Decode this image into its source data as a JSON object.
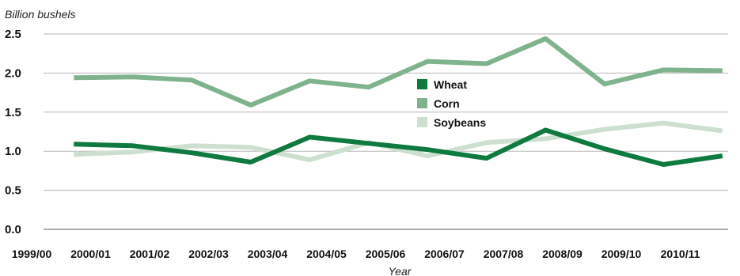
{
  "chart_data": {
    "type": "line",
    "unit_label": "Billion bushels",
    "xlabel": "Year",
    "ylim": [
      0,
      2.5
    ],
    "yticks": [
      "0.0",
      "0.5",
      "1.0",
      "1.5",
      "2.0",
      "2.5"
    ],
    "categories": [
      "1999/00",
      "2000/01",
      "2001/02",
      "2002/03",
      "2003/04",
      "2004/05",
      "2005/06",
      "2006/07",
      "2007/08",
      "2008/09",
      "2009/10",
      "2010/11"
    ],
    "grid": true,
    "legend_position": "center",
    "series": [
      {
        "name": "Wheat",
        "color": "#0f7a3f",
        "values": [
          1.09,
          1.07,
          0.98,
          0.86,
          1.18,
          1.1,
          1.02,
          0.91,
          1.27,
          1.03,
          0.83,
          0.94
        ]
      },
      {
        "name": "Corn",
        "color": "#7fb38d",
        "values": [
          1.94,
          1.95,
          1.91,
          1.59,
          1.9,
          1.82,
          2.15,
          2.12,
          2.44,
          1.86,
          2.04,
          2.03
        ]
      },
      {
        "name": "Soybeans",
        "color": "#cde0cf",
        "values": [
          0.96,
          0.99,
          1.07,
          1.05,
          0.89,
          1.11,
          0.94,
          1.11,
          1.16,
          1.28,
          1.36,
          1.26
        ]
      }
    ]
  }
}
